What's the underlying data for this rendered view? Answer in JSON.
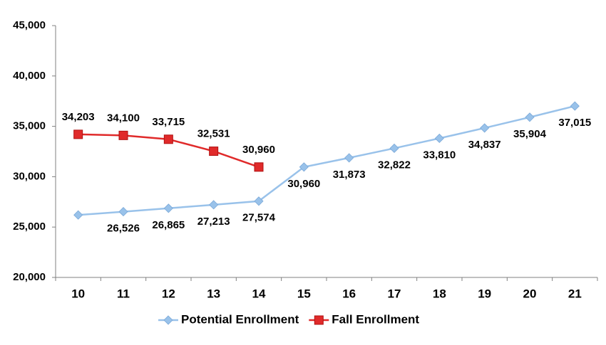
{
  "chart_data": {
    "type": "line",
    "categories": [
      "10",
      "11",
      "12",
      "13",
      "14",
      "15",
      "16",
      "17",
      "18",
      "19",
      "20",
      "21"
    ],
    "series": [
      {
        "name": "Potential Enrollment",
        "color": "#99c2ea",
        "marker": "diamond",
        "values": [
          26200,
          26526,
          26865,
          27213,
          27574,
          30960,
          31873,
          32822,
          33810,
          34837,
          35904,
          37015
        ],
        "value_labels": [
          null,
          "26,526",
          "26,865",
          "27,213",
          "27,574",
          "30,960",
          "31,873",
          "32,822",
          "33,810",
          "34,837",
          "35,904",
          "37,015"
        ]
      },
      {
        "name": "Fall Enrollment",
        "color": "#e02a2a",
        "marker": "square",
        "values": [
          34203,
          34100,
          33715,
          32531,
          30960,
          null,
          null,
          null,
          null,
          null,
          null,
          null
        ],
        "value_labels": [
          "34,203",
          "34,100",
          "33,715",
          "32,531",
          "30,960",
          null,
          null,
          null,
          null,
          null,
          null,
          null
        ]
      }
    ],
    "ylim": [
      20000,
      45000
    ],
    "yticks": [
      {
        "value": 20000,
        "label": "20,000"
      },
      {
        "value": 25000,
        "label": "25,000"
      },
      {
        "value": 30000,
        "label": "30,000"
      },
      {
        "value": 35000,
        "label": "35,000"
      },
      {
        "value": 40000,
        "label": "40,000"
      },
      {
        "value": 45000,
        "label": "45,000"
      }
    ],
    "grid": false,
    "legend": "bottom"
  }
}
